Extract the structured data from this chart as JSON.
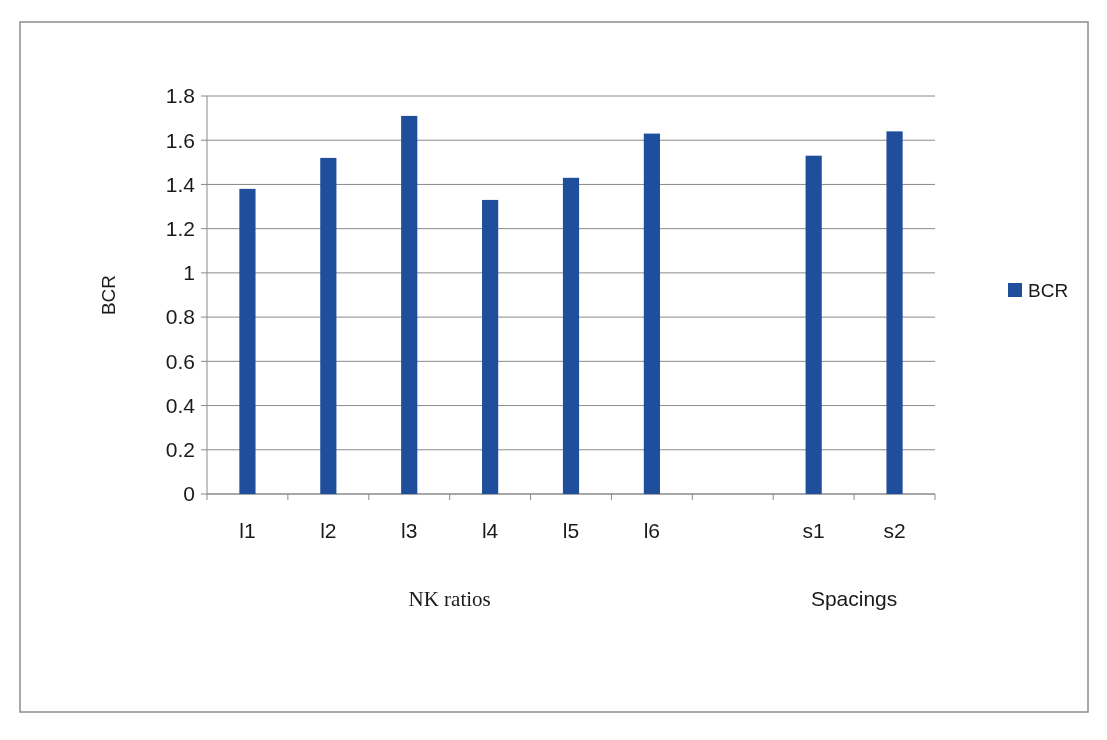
{
  "chart_data": {
    "type": "bar",
    "categories": [
      "l1",
      "l2",
      "l3",
      "l4",
      "l5",
      "l6",
      null,
      "s1",
      "s2"
    ],
    "series": [
      {
        "name": "BCR",
        "color": "#1f4e9c",
        "values": [
          1.38,
          1.52,
          1.71,
          1.33,
          1.43,
          1.63,
          null,
          1.53,
          1.64
        ]
      }
    ],
    "ylabel": "BCR",
    "ylim": [
      0,
      1.8
    ],
    "yticks": [
      0,
      0.2,
      0.4,
      0.6,
      0.8,
      1,
      1.2,
      1.4,
      1.6,
      1.8
    ],
    "grid": "y",
    "legend": "right",
    "annotations": [
      "NK ratios",
      "Spacings"
    ]
  }
}
